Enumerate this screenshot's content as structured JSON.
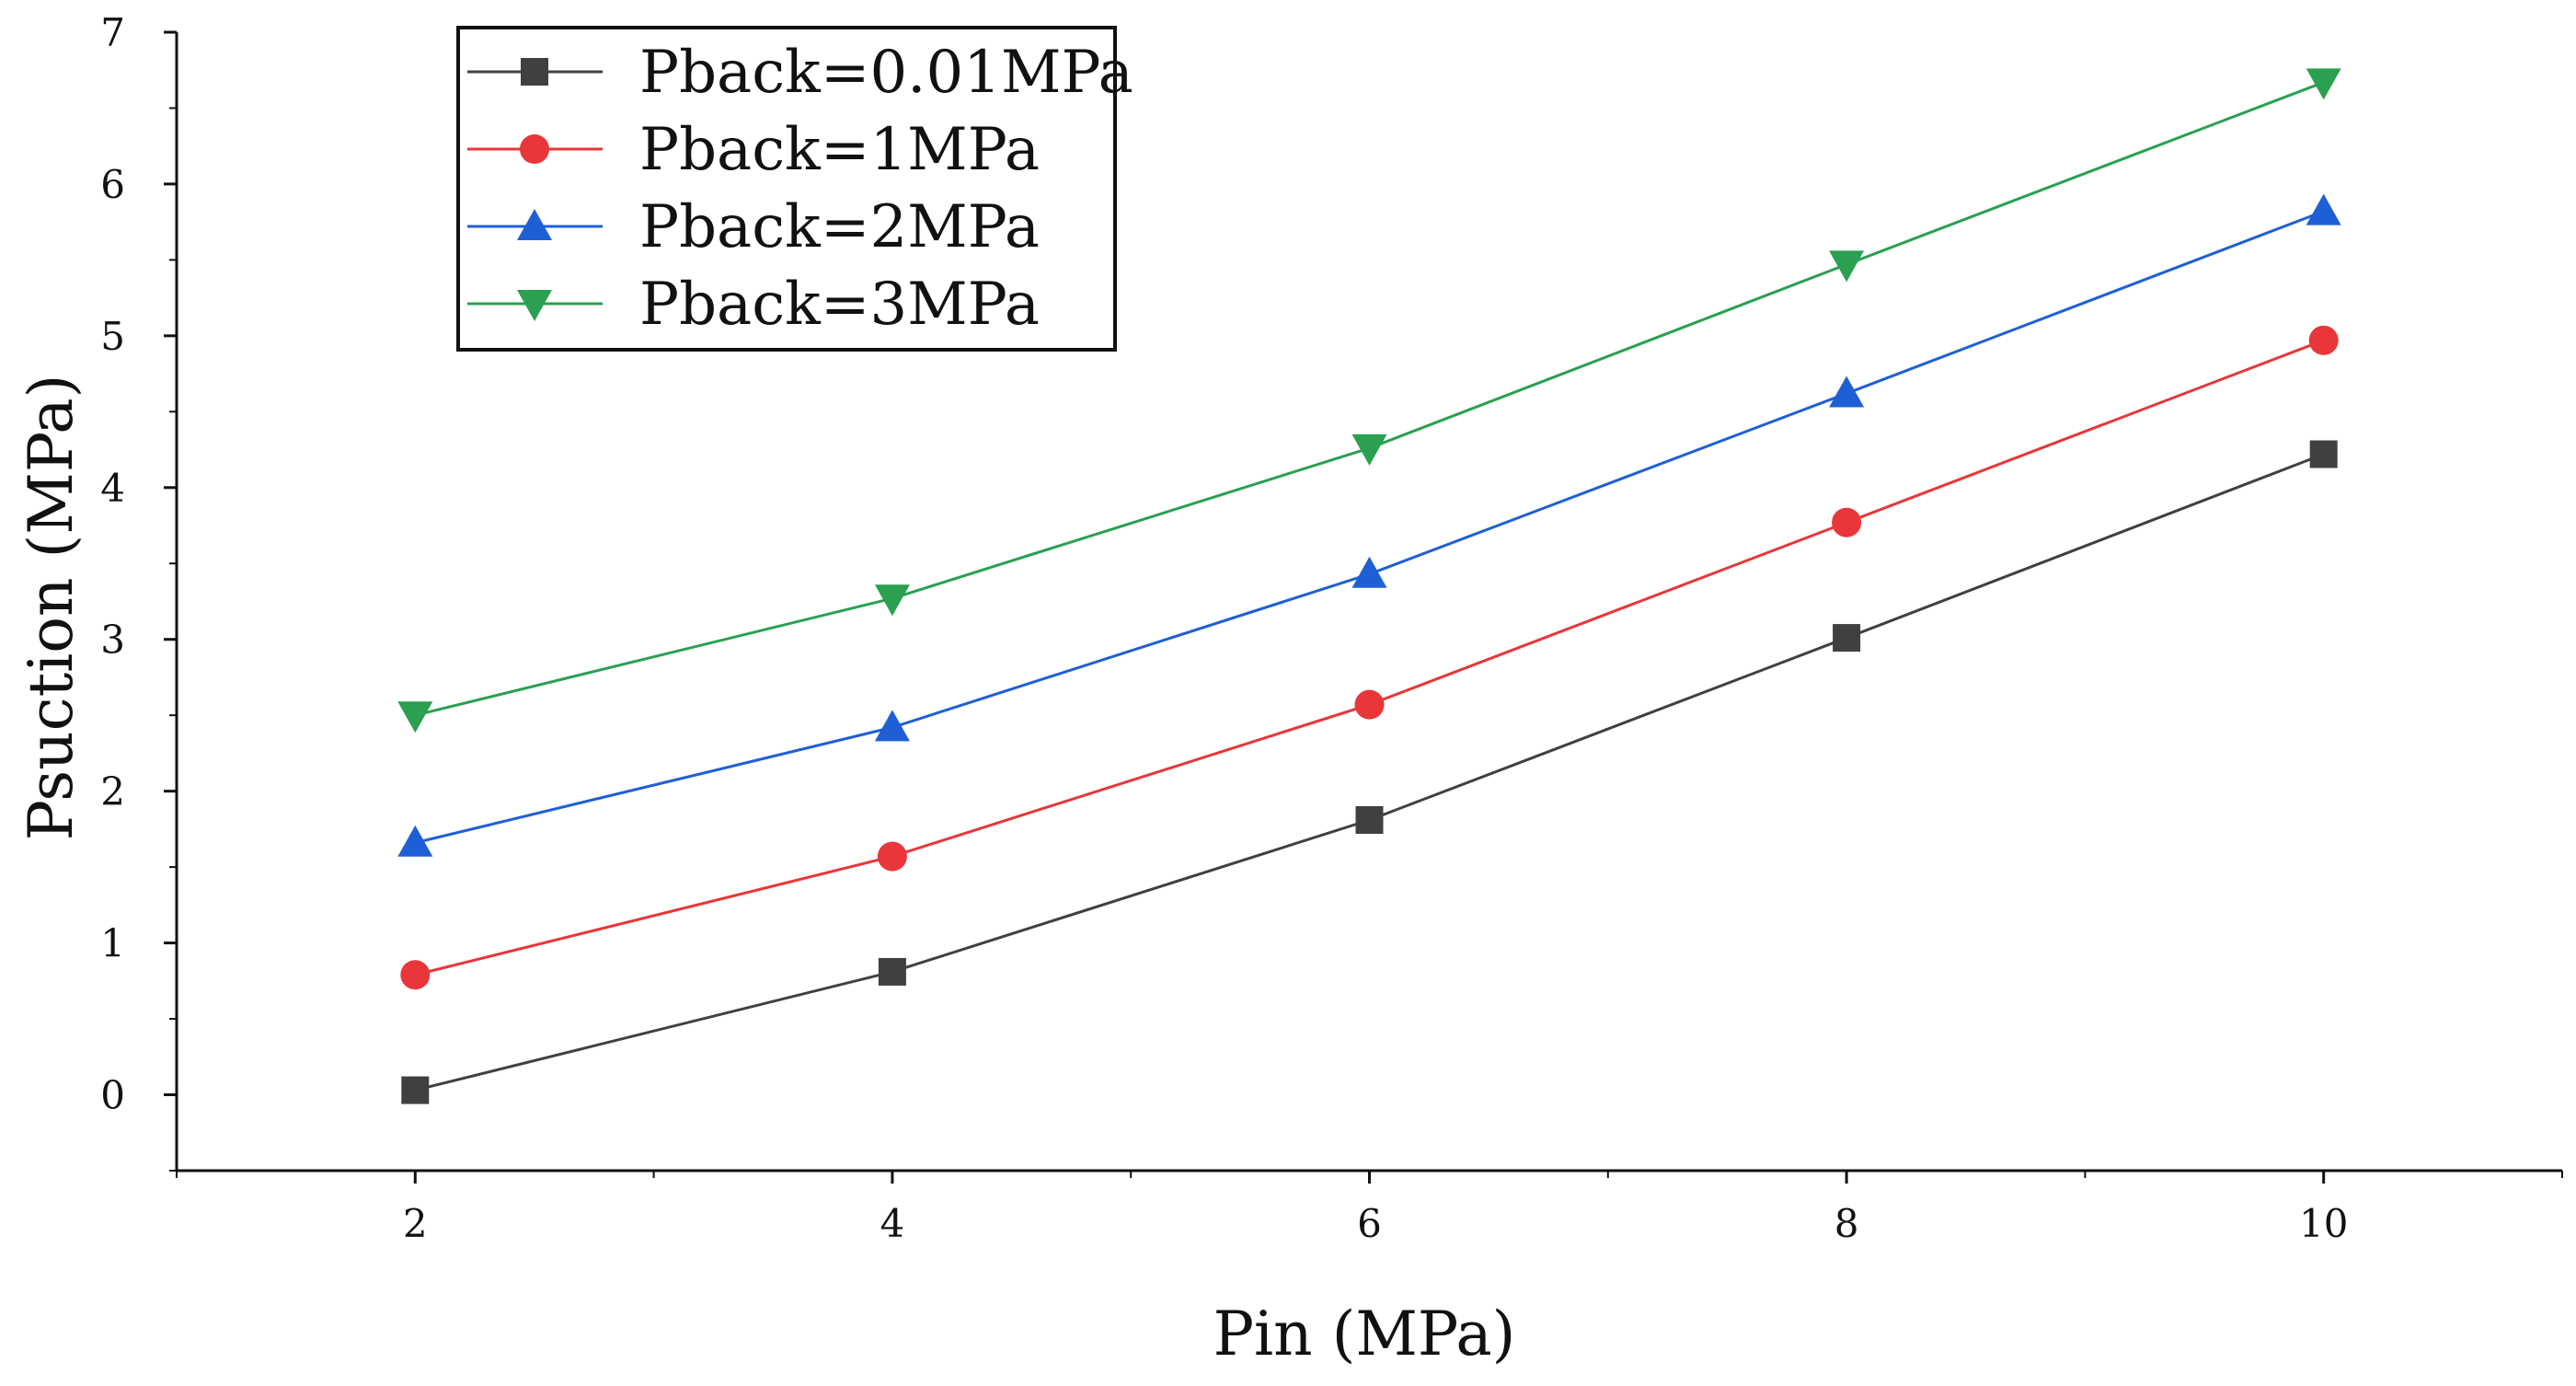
{
  "chart_data": {
    "type": "line",
    "title": "",
    "xlabel": "Pin (MPa)",
    "ylabel": "Psuction (MPa)",
    "x": [
      2,
      4,
      6,
      8,
      10
    ],
    "xlim": [
      1,
      11
    ],
    "ylim": [
      -0.5,
      7
    ],
    "xticks": [
      2,
      4,
      6,
      8,
      10
    ],
    "yticks": [
      0,
      1,
      2,
      3,
      4,
      5,
      6,
      7
    ],
    "grid": false,
    "legend_position": "top-left",
    "series": [
      {
        "name": "Pback=0.01MPa",
        "color": "#404040",
        "marker": "square",
        "values": [
          0.03,
          0.81,
          1.81,
          3.01,
          4.22
        ]
      },
      {
        "name": "Pback=1MPa",
        "color": "#e8363a",
        "marker": "circle",
        "values": [
          0.79,
          1.57,
          2.57,
          3.77,
          4.97
        ]
      },
      {
        "name": "Pback=2MPa",
        "color": "#1f5fd6",
        "marker": "triangle-up",
        "values": [
          1.66,
          2.42,
          3.43,
          4.62,
          5.82
        ]
      },
      {
        "name": "Pback=3MPa",
        "color": "#2aa050",
        "marker": "triangle-down",
        "values": [
          2.5,
          3.27,
          4.26,
          5.47,
          6.67
        ]
      }
    ]
  }
}
